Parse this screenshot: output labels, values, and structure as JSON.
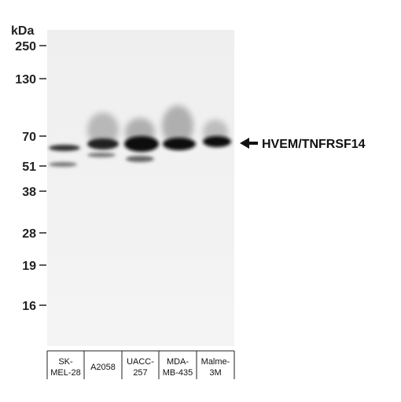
{
  "unit": "kDa",
  "markers": [
    250,
    130,
    70,
    51,
    38,
    28,
    19,
    16
  ],
  "lanes": [
    [
      "SK-",
      "MEL-28"
    ],
    [
      "A2058"
    ],
    [
      "UACC-",
      "257"
    ],
    [
      "MDA-",
      "MB-435"
    ],
    [
      "Malme-",
      "3M"
    ]
  ],
  "band_label": "HVEM/TNFRSF14"
}
